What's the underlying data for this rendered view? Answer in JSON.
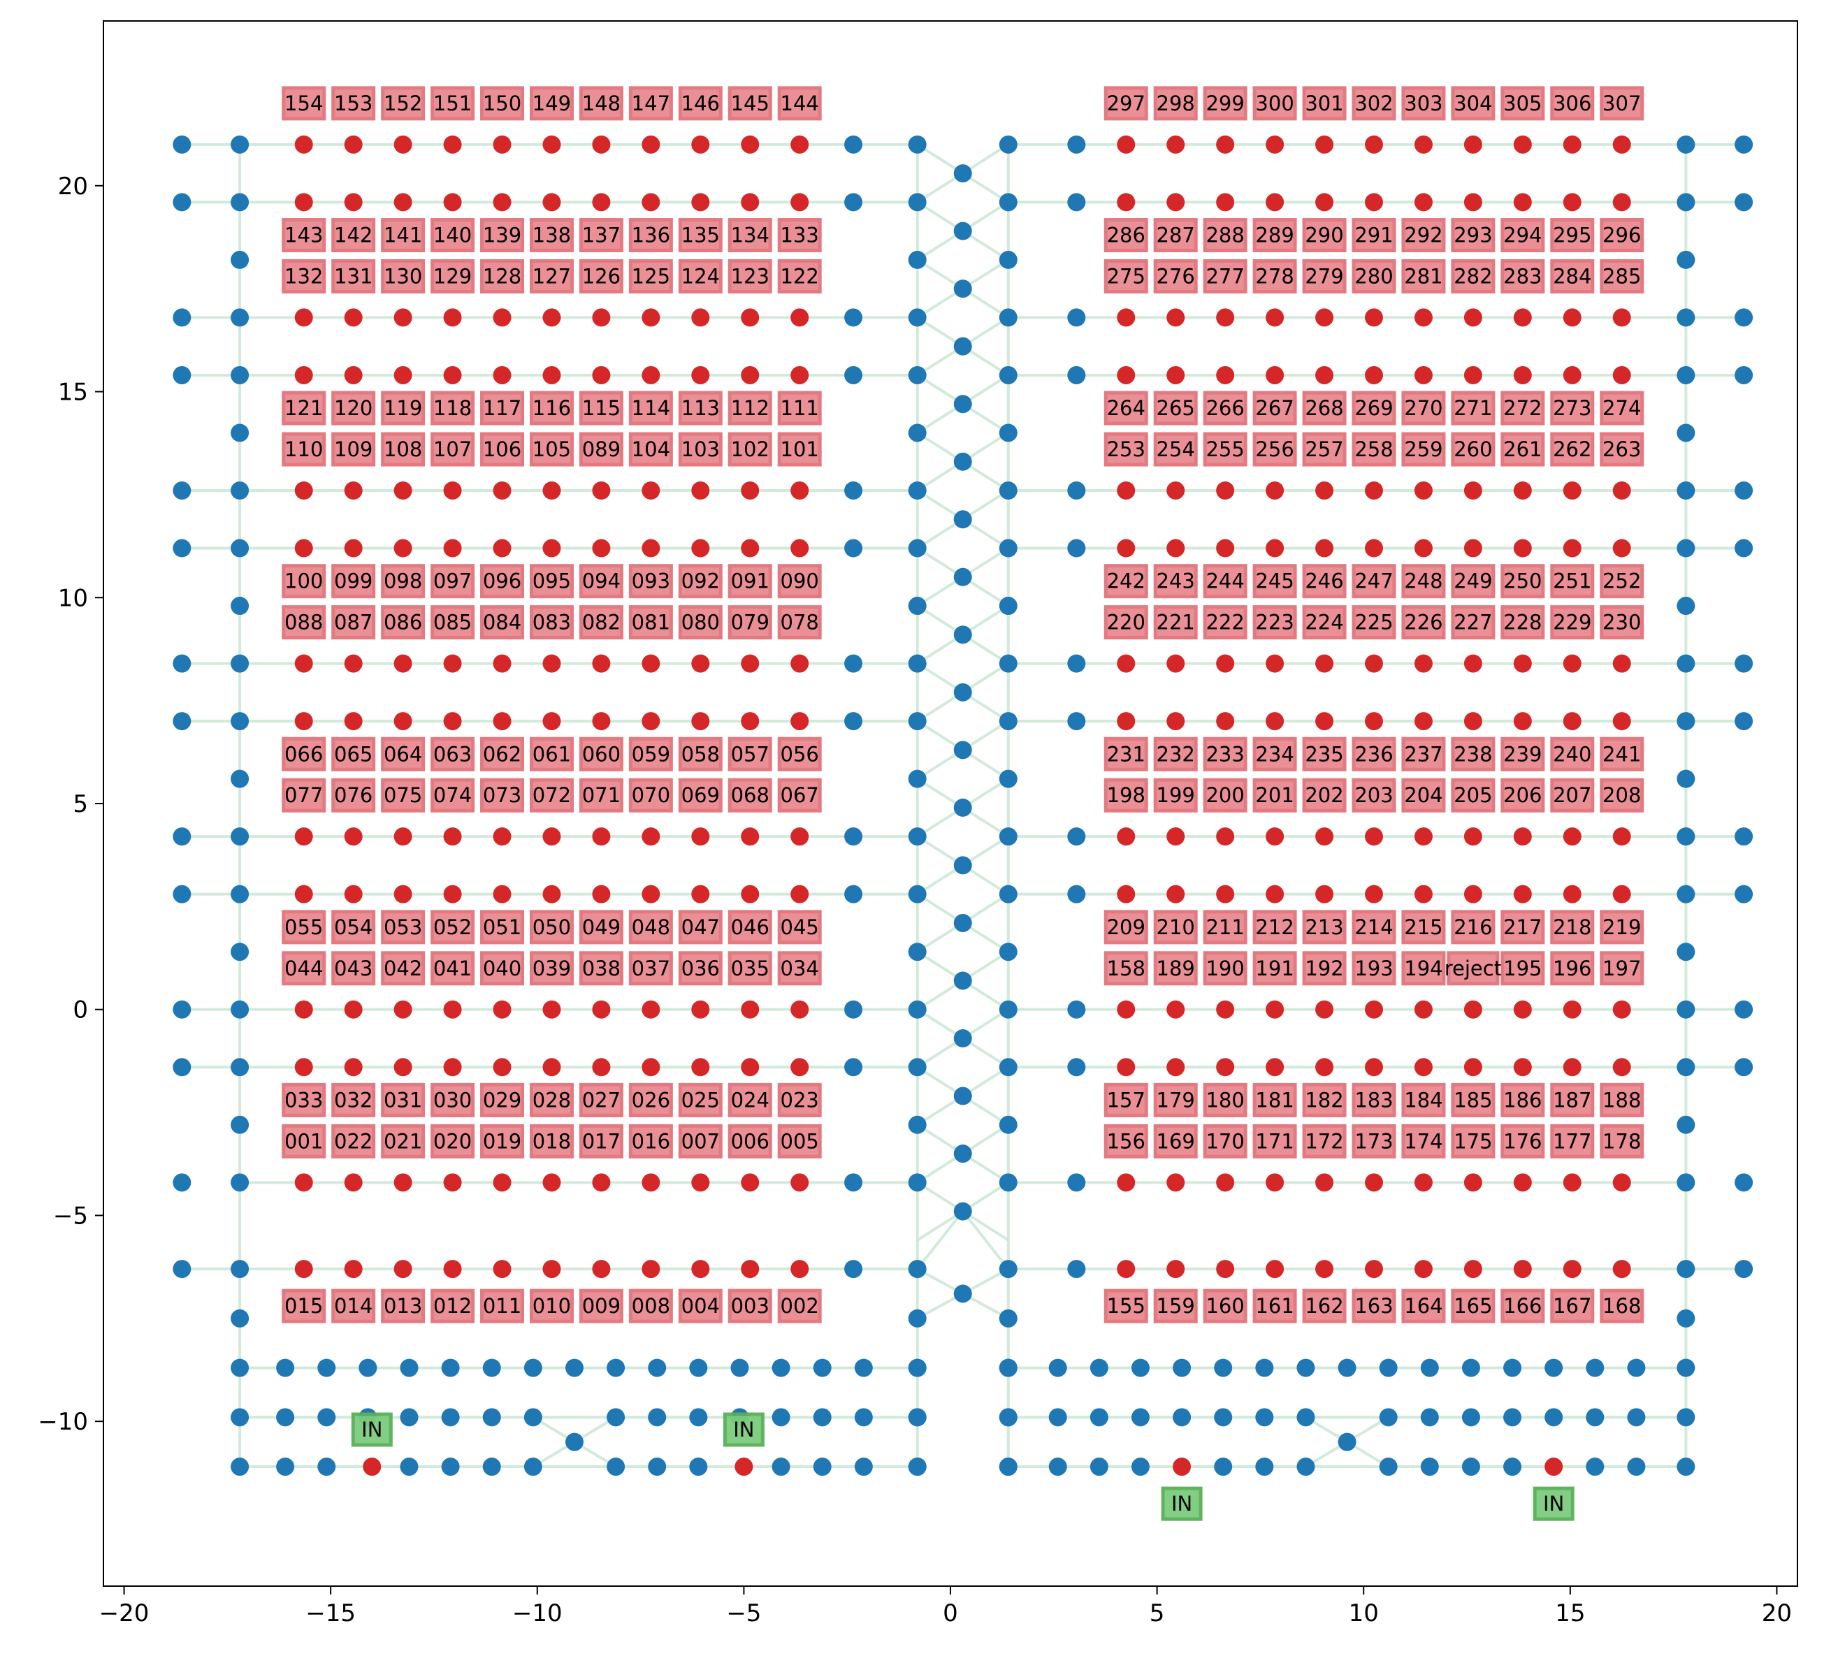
{
  "chart_data": {
    "type": "scatter",
    "title": "",
    "xlabel": "",
    "ylabel": "",
    "xlim": [
      -20.5,
      20.5
    ],
    "ylim": [
      -14,
      24
    ],
    "xticks": [
      -20,
      -15,
      -10,
      -5,
      0,
      5,
      10,
      15,
      20
    ],
    "yticks": [
      -10,
      -5,
      0,
      5,
      10,
      15,
      20
    ],
    "xtick_labels": [
      "−20",
      "−15",
      "−10",
      "−5",
      "0",
      "5",
      "10",
      "15",
      "20"
    ],
    "ytick_labels": [
      "−10",
      "−5",
      "0",
      "5",
      "10",
      "15",
      "20"
    ],
    "grid": false,
    "colors": {
      "node": "#1f77b4",
      "slot": "#d62728",
      "box": "#e8838a",
      "box_edge": "#e06c74",
      "in_box": "#7ccc7c",
      "in_edge": "#58b058",
      "edge": "#c8e6d2"
    },
    "slot_cols_left": [
      -15.65,
      -14.45,
      -13.25,
      -12.05,
      -10.85,
      -9.65,
      -8.45,
      -7.25,
      -6.05,
      -4.85,
      -3.65
    ],
    "slot_cols_right": [
      4.25,
      5.45,
      6.65,
      7.85,
      9.05,
      10.25,
      11.45,
      12.65,
      13.85,
      15.05,
      16.25
    ],
    "slot_row_y": [
      21.0,
      19.6,
      16.8,
      15.4,
      12.6,
      11.2,
      8.4,
      7.0,
      4.2,
      2.8,
      0.0,
      -1.4,
      -4.2,
      -6.3
    ],
    "label_rows_left": [
      {
        "y": 22.0,
        "labels": [
          "154",
          "153",
          "152",
          "151",
          "150",
          "149",
          "148",
          "147",
          "146",
          "145",
          "144"
        ]
      },
      {
        "y": 18.8,
        "labels": [
          "143",
          "142",
          "141",
          "140",
          "139",
          "138",
          "137",
          "136",
          "135",
          "134",
          "133"
        ]
      },
      {
        "y": 17.8,
        "labels": [
          "132",
          "131",
          "130",
          "129",
          "128",
          "127",
          "126",
          "125",
          "124",
          "123",
          "122"
        ]
      },
      {
        "y": 14.6,
        "labels": [
          "121",
          "120",
          "119",
          "118",
          "117",
          "116",
          "115",
          "114",
          "113",
          "112",
          "111"
        ]
      },
      {
        "y": 13.6,
        "labels": [
          "110",
          "109",
          "108",
          "107",
          "106",
          "105",
          "089",
          "104",
          "103",
          "102",
          "101"
        ]
      },
      {
        "y": 10.4,
        "labels": [
          "100",
          "099",
          "098",
          "097",
          "096",
          "095",
          "094",
          "093",
          "092",
          "091",
          "090"
        ]
      },
      {
        "y": 9.4,
        "labels": [
          "088",
          "087",
          "086",
          "085",
          "084",
          "083",
          "082",
          "081",
          "080",
          "079",
          "078"
        ]
      },
      {
        "y": 6.2,
        "labels": [
          "066",
          "065",
          "064",
          "063",
          "062",
          "061",
          "060",
          "059",
          "058",
          "057",
          "056"
        ]
      },
      {
        "y": 5.2,
        "labels": [
          "077",
          "076",
          "075",
          "074",
          "073",
          "072",
          "071",
          "070",
          "069",
          "068",
          "067"
        ]
      },
      {
        "y": 2.0,
        "labels": [
          "055",
          "054",
          "053",
          "052",
          "051",
          "050",
          "049",
          "048",
          "047",
          "046",
          "045"
        ]
      },
      {
        "y": 1.0,
        "labels": [
          "044",
          "043",
          "042",
          "041",
          "040",
          "039",
          "038",
          "037",
          "036",
          "035",
          "034"
        ]
      },
      {
        "y": -2.2,
        "labels": [
          "033",
          "032",
          "031",
          "030",
          "029",
          "028",
          "027",
          "026",
          "025",
          "024",
          "023"
        ]
      },
      {
        "y": -3.2,
        "labels": [
          "001",
          "022",
          "021",
          "020",
          "019",
          "018",
          "017",
          "016",
          "007",
          "006",
          "005"
        ]
      },
      {
        "y": -7.2,
        "labels": [
          "015",
          "014",
          "013",
          "012",
          "011",
          "010",
          "009",
          "008",
          "004",
          "003",
          "002"
        ]
      }
    ],
    "label_rows_right": [
      {
        "y": 22.0,
        "labels": [
          "297",
          "298",
          "299",
          "300",
          "301",
          "302",
          "303",
          "304",
          "305",
          "306",
          "307"
        ]
      },
      {
        "y": 18.8,
        "labels": [
          "286",
          "287",
          "288",
          "289",
          "290",
          "291",
          "292",
          "293",
          "294",
          "295",
          "296"
        ]
      },
      {
        "y": 17.8,
        "labels": [
          "275",
          "276",
          "277",
          "278",
          "279",
          "280",
          "281",
          "282",
          "283",
          "284",
          "285"
        ]
      },
      {
        "y": 14.6,
        "labels": [
          "264",
          "265",
          "266",
          "267",
          "268",
          "269",
          "270",
          "271",
          "272",
          "273",
          "274"
        ]
      },
      {
        "y": 13.6,
        "labels": [
          "253",
          "254",
          "255",
          "256",
          "257",
          "258",
          "259",
          "260",
          "261",
          "262",
          "263"
        ]
      },
      {
        "y": 10.4,
        "labels": [
          "242",
          "243",
          "244",
          "245",
          "246",
          "247",
          "248",
          "249",
          "250",
          "251",
          "252"
        ]
      },
      {
        "y": 9.4,
        "labels": [
          "220",
          "221",
          "222",
          "223",
          "224",
          "225",
          "226",
          "227",
          "228",
          "229",
          "230"
        ]
      },
      {
        "y": 6.2,
        "labels": [
          "231",
          "232",
          "233",
          "234",
          "235",
          "236",
          "237",
          "238",
          "239",
          "240",
          "241"
        ]
      },
      {
        "y": 5.2,
        "labels": [
          "198",
          "199",
          "200",
          "201",
          "202",
          "203",
          "204",
          "205",
          "206",
          "207",
          "208"
        ]
      },
      {
        "y": 2.0,
        "labels": [
          "209",
          "210",
          "211",
          "212",
          "213",
          "214",
          "215",
          "216",
          "217",
          "218",
          "219"
        ]
      },
      {
        "y": 1.0,
        "labels": [
          "158",
          "189",
          "190",
          "191",
          "192",
          "193",
          "194",
          "reject",
          "195",
          "196",
          "197"
        ]
      },
      {
        "y": -2.2,
        "labels": [
          "157",
          "179",
          "180",
          "181",
          "182",
          "183",
          "184",
          "185",
          "186",
          "187",
          "188"
        ]
      },
      {
        "y": -3.2,
        "labels": [
          "156",
          "169",
          "170",
          "171",
          "172",
          "173",
          "174",
          "175",
          "176",
          "177",
          "178"
        ]
      },
      {
        "y": -7.2,
        "labels": [
          "155",
          "159",
          "160",
          "161",
          "162",
          "163",
          "164",
          "165",
          "166",
          "167",
          "168"
        ]
      }
    ],
    "in_markers": [
      {
        "x": -14.0,
        "y": -10.2,
        "label": "IN"
      },
      {
        "x": -5.0,
        "y": -10.2,
        "label": "IN"
      },
      {
        "x": 5.6,
        "y": -12.0,
        "label": "IN"
      },
      {
        "x": 14.6,
        "y": -12.0,
        "label": "IN"
      }
    ],
    "bottom_slots": [
      {
        "x": -14.0,
        "y": -11.1
      },
      {
        "x": -5.0,
        "y": -11.1
      },
      {
        "x": 5.6,
        "y": -11.1
      },
      {
        "x": 14.6,
        "y": -11.1
      }
    ],
    "aisle_left_x": [
      -16.1,
      -15.1,
      -14.1,
      -13.1,
      -12.1,
      -11.1,
      -10.1,
      -9.1,
      -8.1,
      -7.1,
      -6.1,
      -5.1,
      -4.1,
      -3.1,
      -2.1,
      -0.8
    ],
    "aisle_right_x": [
      1.4,
      2.6,
      3.6,
      4.6,
      5.6,
      6.6,
      7.6,
      8.6,
      9.6,
      10.6,
      11.6,
      12.6,
      13.6,
      14.6,
      15.6,
      16.6,
      17.8
    ],
    "bottom_rows_y": [
      -8.7,
      -9.9,
      -11.1
    ]
  }
}
